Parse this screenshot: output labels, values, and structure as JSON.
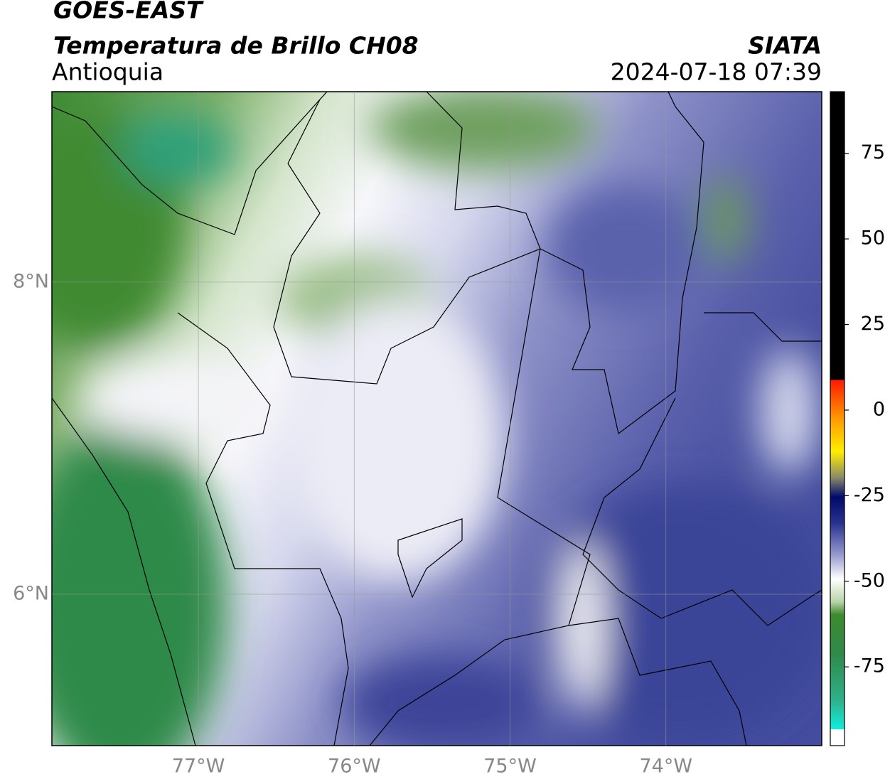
{
  "header": {
    "title": "GOES-EAST",
    "subtitle": "Temperatura de Brillo CH08",
    "region": "Antioquia",
    "source": "SIATA",
    "datetime": "2024-07-18 07:39"
  },
  "map": {
    "xlim": [
      -77.94,
      -73
    ],
    "ylim": [
      5.03,
      9.22
    ],
    "xticks": [
      {
        "value": -77,
        "label": "77°W"
      },
      {
        "value": -76,
        "label": "76°W"
      },
      {
        "value": -75,
        "label": "75°W"
      },
      {
        "value": -74,
        "label": "74°W"
      }
    ],
    "yticks": [
      {
        "value": 6,
        "label": "6°N"
      },
      {
        "value": 8,
        "label": "8°N"
      }
    ],
    "grid": true
  },
  "colorbar": {
    "lim": [
      -98,
      93
    ],
    "ticks": [
      75,
      50,
      25,
      0,
      -25,
      -50,
      -75
    ]
  }
}
